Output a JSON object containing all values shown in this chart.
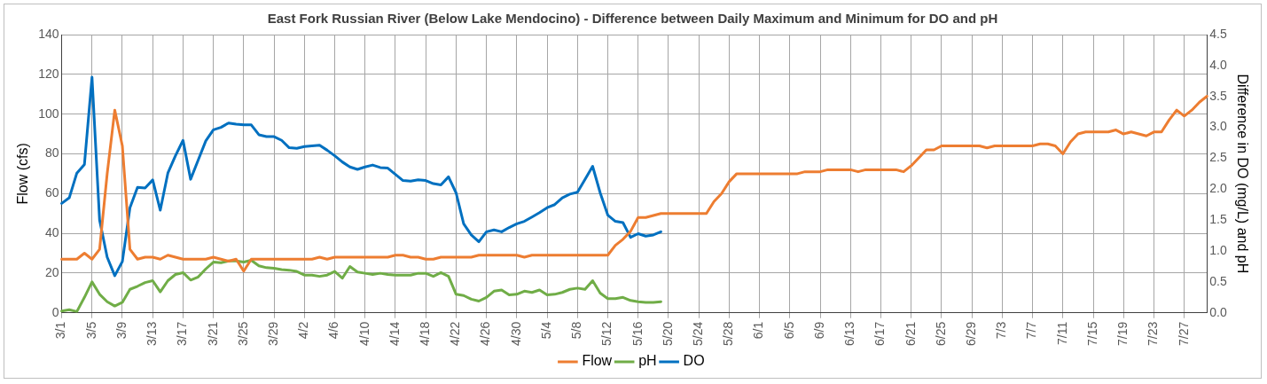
{
  "chart_data": {
    "type": "line",
    "title": "East Fork Russian River (Below Lake Mendocino) - Difference between Daily Maximum and Minimum for DO and pH",
    "ylabel": "Flow (cfs)",
    "y2label": "Difference in DO (mg/L) and pH",
    "categories": [
      "3/1",
      null,
      null,
      null,
      "3/5",
      null,
      null,
      null,
      "3/9",
      null,
      null,
      null,
      "3/13",
      null,
      null,
      null,
      "3/17",
      null,
      null,
      null,
      "3/21",
      null,
      null,
      null,
      "3/25",
      null,
      null,
      null,
      "3/29",
      null,
      null,
      null,
      "4/2",
      null,
      null,
      null,
      "4/6",
      null,
      null,
      null,
      "4/10",
      null,
      null,
      null,
      "4/14",
      null,
      null,
      null,
      "4/18",
      null,
      null,
      null,
      "4/22",
      null,
      null,
      null,
      "4/26",
      null,
      null,
      null,
      "4/30",
      null,
      null,
      null,
      "5/4",
      null,
      null,
      null,
      "5/8",
      null,
      null,
      null,
      "5/12",
      null,
      null,
      null,
      "5/16",
      null,
      null,
      null,
      "5/20",
      null,
      null,
      null,
      "5/24",
      null,
      null,
      null,
      "5/28",
      null,
      null,
      null,
      "6/1",
      null,
      null,
      null,
      "6/5",
      null,
      null,
      null,
      "6/9",
      null,
      null,
      null,
      "6/13",
      null,
      null,
      null,
      "6/17",
      null,
      null,
      null,
      "6/21",
      null,
      null,
      null,
      "6/25",
      null,
      null,
      null,
      "6/29",
      null,
      null,
      null,
      "7/3",
      null,
      null,
      null,
      "7/7",
      null,
      null,
      null,
      "7/11",
      null,
      null,
      null,
      "7/15",
      null,
      null,
      null,
      "7/19",
      null,
      null,
      null,
      "7/23",
      null,
      null,
      null,
      "7/27",
      null,
      null,
      null
    ],
    "series": [
      {
        "name": "Flow",
        "color": "#ed7d31",
        "values": [
          27,
          27,
          27,
          30,
          27,
          32,
          70,
          102,
          84,
          32,
          27,
          28,
          28,
          27,
          29,
          28,
          27,
          27,
          27,
          27,
          28,
          27,
          26,
          27,
          21,
          27,
          27,
          27,
          27,
          27,
          27,
          27,
          27,
          27,
          28,
          27,
          28,
          28,
          28,
          28,
          28,
          28,
          28,
          28,
          29,
          29,
          28,
          28,
          27,
          27,
          28,
          28,
          28,
          28,
          28,
          29,
          29,
          29,
          29,
          29,
          29,
          28,
          29,
          29,
          29,
          29,
          29,
          29,
          29,
          29,
          29,
          29,
          29,
          34,
          37,
          41,
          48,
          48,
          49,
          50,
          50,
          50,
          50,
          50,
          50,
          50,
          56,
          60,
          66,
          70,
          70,
          70,
          70,
          70,
          70,
          70,
          70,
          70,
          71,
          71,
          71,
          72,
          72,
          72,
          72,
          71,
          72,
          72,
          72,
          72,
          72,
          71,
          74,
          78,
          82,
          82,
          84,
          84,
          84,
          84,
          84,
          84,
          83,
          84,
          84,
          84,
          84,
          84,
          84,
          85,
          85,
          84,
          80,
          86,
          90,
          91,
          91,
          91,
          91,
          92,
          90,
          91,
          90,
          89,
          91,
          91,
          97,
          102,
          99,
          102,
          106,
          109
        ]
      },
      {
        "name": "pH",
        "color": "#70ad47",
        "axis": "y2",
        "values": [
          0.03,
          0.05,
          0.02,
          0.25,
          0.5,
          0.3,
          0.18,
          0.11,
          0.17,
          0.38,
          0.43,
          0.49,
          0.52,
          0.34,
          0.52,
          0.62,
          0.65,
          0.53,
          0.58,
          0.71,
          0.82,
          0.81,
          0.84,
          0.84,
          0.82,
          0.85,
          0.76,
          0.73,
          0.72,
          0.7,
          0.69,
          0.67,
          0.61,
          0.61,
          0.59,
          0.61,
          0.67,
          0.56,
          0.75,
          0.66,
          0.64,
          0.62,
          0.64,
          0.62,
          0.61,
          0.61,
          0.61,
          0.64,
          0.64,
          0.59,
          0.65,
          0.59,
          0.3,
          0.28,
          0.22,
          0.19,
          0.25,
          0.35,
          0.37,
          0.29,
          0.3,
          0.35,
          0.33,
          0.37,
          0.29,
          0.3,
          0.33,
          0.38,
          0.4,
          0.38,
          0.52,
          0.32,
          0.23,
          0.23,
          0.25,
          0.2,
          0.18,
          0.17,
          0.17,
          0.18,
          null,
          null,
          null,
          null,
          null,
          null,
          null,
          null,
          null,
          null,
          null,
          null,
          null,
          null,
          null,
          null,
          null,
          null,
          null,
          null,
          null,
          null,
          null,
          null,
          null,
          null,
          null,
          null,
          null,
          null,
          null,
          null,
          null,
          null,
          null,
          null,
          null,
          null,
          null,
          null,
          null,
          null,
          null,
          null,
          null,
          null,
          null,
          null,
          null,
          null,
          null,
          null,
          null,
          null,
          null,
          null,
          null,
          null,
          null,
          null,
          null,
          null,
          null,
          null,
          null,
          null,
          null,
          null,
          null,
          null,
          null,
          null
        ]
      },
      {
        "name": "DO",
        "color": "#0070c0",
        "axis": "y2",
        "values": [
          1.77,
          1.86,
          2.26,
          2.4,
          3.81,
          1.5,
          0.9,
          0.6,
          0.83,
          1.7,
          2.03,
          2.02,
          2.15,
          1.66,
          2.26,
          2.54,
          2.79,
          2.16,
          2.47,
          2.78,
          2.96,
          3.0,
          3.07,
          3.05,
          3.04,
          3.04,
          2.88,
          2.85,
          2.85,
          2.79,
          2.67,
          2.66,
          2.69,
          2.7,
          2.71,
          2.63,
          2.54,
          2.44,
          2.36,
          2.32,
          2.36,
          2.39,
          2.35,
          2.34,
          2.24,
          2.14,
          2.13,
          2.15,
          2.14,
          2.09,
          2.07,
          2.2,
          1.94,
          1.44,
          1.26,
          1.15,
          1.31,
          1.34,
          1.31,
          1.38,
          1.44,
          1.48,
          1.55,
          1.62,
          1.7,
          1.75,
          1.86,
          1.92,
          1.95,
          2.16,
          2.37,
          1.94,
          1.58,
          1.48,
          1.46,
          1.22,
          1.28,
          1.24,
          1.26,
          1.31,
          null,
          null,
          null,
          null,
          null,
          null,
          null,
          null,
          null,
          null,
          null,
          null,
          null,
          null,
          null,
          null,
          null,
          null,
          null,
          null,
          null,
          null,
          null,
          null,
          null,
          null,
          null,
          null,
          null,
          null,
          null,
          null,
          null,
          null,
          null,
          null,
          null,
          null,
          null,
          null,
          null,
          null,
          null,
          null,
          null,
          null,
          null,
          null,
          null,
          null,
          null,
          null,
          null,
          null,
          null,
          null,
          null,
          null,
          null,
          null,
          null,
          null,
          null,
          null,
          null,
          null,
          null,
          null,
          null,
          null,
          null,
          null
        ]
      }
    ],
    "ylim": [
      0,
      140
    ],
    "yticks": [
      0,
      20,
      40,
      60,
      80,
      100,
      120,
      140
    ],
    "y2lim": [
      0,
      4.5
    ],
    "y2ticks": [
      {
        "value": 0,
        "label": "0.0"
      },
      {
        "value": 0.5,
        "label": "0.5"
      },
      {
        "value": 1,
        "label": "1.0"
      },
      {
        "value": 1.5,
        "label": "1.5"
      },
      {
        "value": 2,
        "label": "2.0"
      },
      {
        "value": 2.5,
        "label": "2.5"
      },
      {
        "value": 3,
        "label": "3.0"
      },
      {
        "value": 3.5,
        "label": "3.5"
      },
      {
        "value": 4,
        "label": "4.0"
      },
      {
        "value": 4.5,
        "label": "4.5"
      }
    ],
    "grid": true,
    "legend": "bottom"
  }
}
